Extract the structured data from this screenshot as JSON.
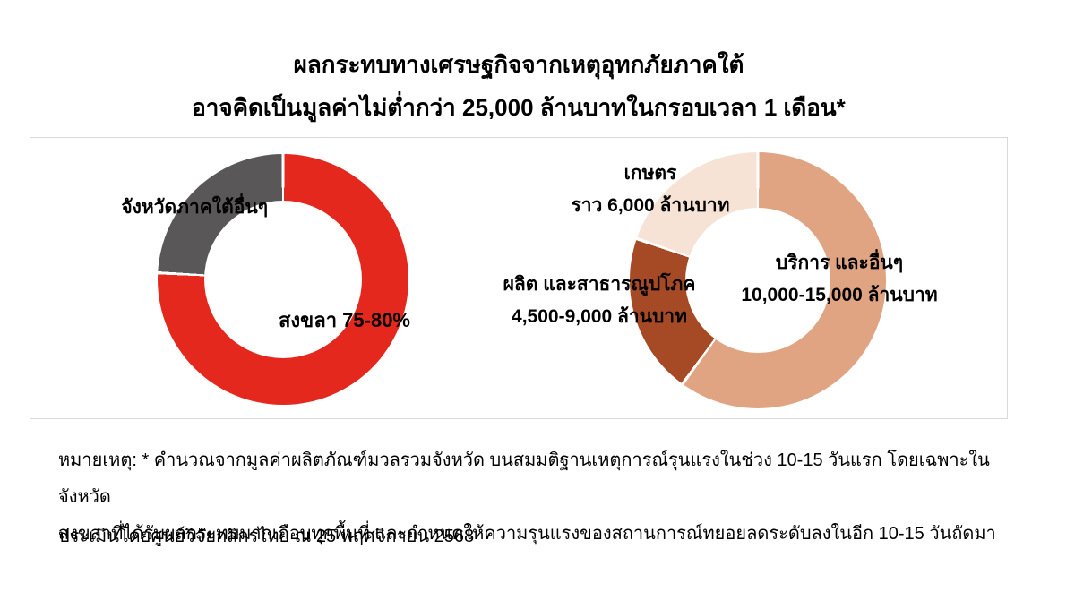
{
  "header": {
    "line1": "ผลกระทบทางเศรษฐกิจจากเหตุอุทกภัยภาคใต้",
    "line2": "อาจคิดเป็นมูลค่าไม่ต่ำกว่า 25,000 ล้านบาทในกรอบเวลา 1 เดือน*"
  },
  "colors": {
    "songkhla_red": "#E4281D",
    "other_provinces_gray": "#595757",
    "services_tan": "#E0A483",
    "manufacturing_brown": "#A54A24",
    "agriculture_cream": "#F6E3D5",
    "panel_border": "#D9D9D9",
    "background": "#FFFFFF"
  },
  "chart_data": [
    {
      "type": "donut",
      "name": "impact-share-by-province",
      "unit": "percent of total impact",
      "segments": [
        {
          "label": "สงขลา 75-80%",
          "category": "สงขลา",
          "value_pct": 76,
          "start_deg": 0,
          "end_deg": 273,
          "color": "#E4281D"
        },
        {
          "label": "จังหวัดภาคใต้อื่นๆ",
          "category": "จังหวัดภาคใต้อื่นๆ",
          "value_pct": 24,
          "start_deg": 273,
          "end_deg": 360,
          "color": "#595757"
        }
      ]
    },
    {
      "type": "donut",
      "name": "impact-by-sector",
      "unit": "ล้านบาท",
      "segments": [
        {
          "label": "บริการ และอื่นๆ",
          "value_label": "10,000-15,000 ล้านบาท",
          "value_range_mb": [
            10000,
            15000
          ],
          "start_deg": 0,
          "end_deg": 216,
          "color": "#E0A483"
        },
        {
          "label": "ผลิต และสาธารณูปโภค",
          "value_label": "4,500-9,000 ล้านบาท",
          "value_range_mb": [
            4500,
            9000
          ],
          "start_deg": 216,
          "end_deg": 289,
          "color": "#A54A24"
        },
        {
          "label": "เกษตร",
          "value_label": "ราว 6,000 ล้านบาท",
          "value_range_mb": [
            6000,
            6000
          ],
          "start_deg": 289,
          "end_deg": 360,
          "color": "#F6E3D5"
        }
      ]
    }
  ],
  "footnote": {
    "note_line1": "หมายเหตุ: * คำนวณจากมูลค่าผลิตภัณฑ์มวลรวมจังหวัด บนสมมติฐานเหตุการณ์รุนแรงในช่วง 10-15 วันแรก โดยเฉพาะในจังหวัด",
    "note_line2": "สงขลาที่ได้รับผลกระทบมากเกือบทุกพื้นที่ และกำหนดให้ความรุนแรงของสถานการณ์ทยอยลดระดับลงในอีก 10-15 วันถัดมา",
    "source": "ประเมินโดยศูนย์วิจัยกสิกรไทย ณ 25 พฤศจิกายน 2568"
  }
}
